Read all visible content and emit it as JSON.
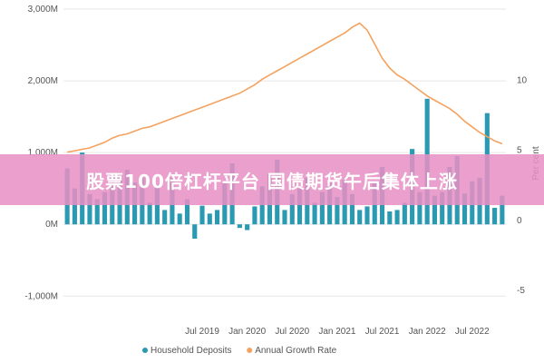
{
  "chart_data": {
    "type": "bar",
    "x": [
      "2018-01",
      "2018-02",
      "2018-03",
      "2018-04",
      "2018-05",
      "2018-06",
      "2018-07",
      "2018-08",
      "2018-09",
      "2018-10",
      "2018-11",
      "2018-12",
      "2019-01",
      "2019-02",
      "2019-03",
      "2019-04",
      "2019-05",
      "2019-06",
      "2019-07",
      "2019-08",
      "2019-09",
      "2019-10",
      "2019-11",
      "2019-12",
      "2020-01",
      "2020-02",
      "2020-03",
      "2020-04",
      "2020-05",
      "2020-06",
      "2020-07",
      "2020-08",
      "2020-09",
      "2020-10",
      "2020-11",
      "2020-12",
      "2021-01",
      "2021-02",
      "2021-03",
      "2021-04",
      "2021-05",
      "2021-06",
      "2021-07",
      "2021-08",
      "2021-09",
      "2021-10",
      "2021-11",
      "2021-12",
      "2022-01",
      "2022-02",
      "2022-03",
      "2022-04",
      "2022-05",
      "2022-06",
      "2022-07",
      "2022-08",
      "2022-09",
      "2022-10",
      "2022-11"
    ],
    "series": [
      {
        "name": "Household Deposits",
        "color": "#2a9ab3",
        "axis": "left",
        "type": "bar",
        "values": [
          780,
          500,
          1000,
          420,
          350,
          450,
          700,
          720,
          760,
          580,
          650,
          300,
          550,
          200,
          650,
          150,
          350,
          -200,
          260,
          150,
          200,
          580,
          850,
          -50,
          -80,
          250,
          530,
          700,
          900,
          200,
          420,
          500,
          650,
          300,
          450,
          580,
          380,
          620,
          420,
          200,
          250,
          600,
          800,
          180,
          200,
          300,
          1050,
          450,
          1750,
          400,
          450,
          800,
          950,
          430,
          600,
          650,
          1550,
          230,
          400
        ]
      },
      {
        "name": "Annual Growth Rate",
        "color": "#f4a25f",
        "axis": "right",
        "type": "line",
        "values": [
          4.8,
          4.9,
          5.0,
          5.1,
          5.3,
          5.5,
          5.8,
          6.0,
          6.1,
          6.3,
          6.5,
          6.6,
          6.8,
          7.0,
          7.2,
          7.4,
          7.6,
          7.8,
          8.0,
          8.2,
          8.4,
          8.6,
          8.8,
          9.0,
          9.3,
          9.6,
          10.0,
          10.3,
          10.6,
          10.9,
          11.2,
          11.5,
          11.8,
          12.1,
          12.4,
          12.7,
          13.0,
          13.3,
          13.7,
          14.0,
          13.5,
          12.5,
          11.5,
          10.8,
          10.3,
          10.0,
          9.6,
          9.2,
          8.8,
          8.5,
          8.2,
          7.9,
          7.5,
          7.0,
          6.6,
          6.2,
          5.9,
          5.6,
          5.4
        ]
      }
    ],
    "y_left_ticks": [
      "3,000M",
      "2,000M",
      "1,000M",
      "0M",
      "-1,000M"
    ],
    "y_left_range": [
      -1300,
      3000
    ],
    "y_right_ticks": [
      "10",
      "5",
      "0",
      "-5"
    ],
    "y_right_range": [
      -7,
      15
    ],
    "y_right_label": "Per cent",
    "x_ticks": [
      "Jul 2019",
      "Jan 2020",
      "Jul 2020",
      "Jan 2021",
      "Jul 2021",
      "Jan 2022",
      "Jul 2022"
    ],
    "legend": {
      "position": "bottom-center",
      "items": [
        "Household Deposits",
        "Annual Growth Rate"
      ]
    },
    "grid": "horizontal"
  },
  "overlay": {
    "text": "股票100倍杠杆平台 国债期货午后集体上涨",
    "color": "#e68fc4"
  }
}
